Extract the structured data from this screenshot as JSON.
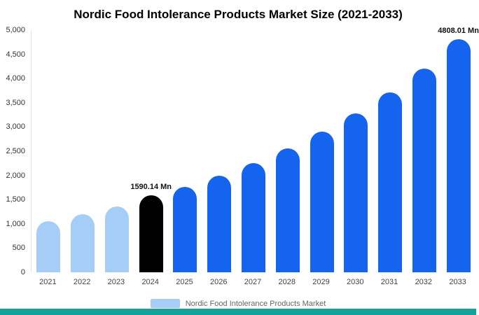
{
  "page": {
    "title": "Nordic Food Intolerance Products Market Size (2021-2033)"
  },
  "legend": {
    "label": "Nordic Food Intolerance Products Market",
    "swatch_color": "#a6cdf5"
  },
  "colors": {
    "light_blue": "#a6cdf5",
    "blue": "#1464f0",
    "black": "#000000",
    "teal_strip": "#12a49a"
  },
  "chart_data": {
    "type": "bar",
    "title": "Nordic Food Intolerance Products Market Size (2021-2033)",
    "categories": [
      "2021",
      "2022",
      "2023",
      "2024",
      "2025",
      "2026",
      "2027",
      "2028",
      "2029",
      "2030",
      "2031",
      "2032",
      "2033"
    ],
    "values": [
      1050,
      1200,
      1360,
      1590.14,
      1760,
      2000,
      2260,
      2560,
      2900,
      3280,
      3710,
      4210,
      4808.01
    ],
    "bar_colors": [
      "light_blue",
      "light_blue",
      "light_blue",
      "black",
      "blue",
      "blue",
      "blue",
      "blue",
      "blue",
      "blue",
      "blue",
      "blue",
      "blue"
    ],
    "ylim": [
      0,
      5000
    ],
    "ytick_step": 500,
    "ytick_labels": [
      "0",
      "500",
      "1,000",
      "1,500",
      "2,000",
      "2,500",
      "3,000",
      "3,500",
      "4,000",
      "4,500",
      "5,000"
    ],
    "annotations": [
      {
        "index": 3,
        "category": "2024",
        "text": "1590.14 Mn"
      },
      {
        "index": 12,
        "category": "2033",
        "text": "4808.01 Mn"
      }
    ],
    "legend": [
      "Nordic Food Intolerance Products Market"
    ],
    "legend_position": "bottom",
    "grid": false,
    "xlabel": "",
    "ylabel": ""
  }
}
